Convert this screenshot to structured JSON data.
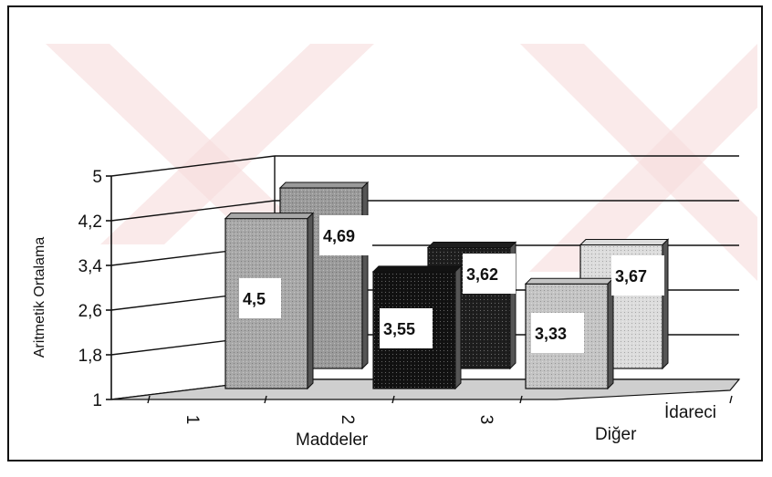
{
  "chart_data": {
    "type": "bar",
    "style": "3d-grouped",
    "categories": [
      "1",
      "2",
      "3"
    ],
    "series": [
      {
        "name": "İdareci",
        "values": [
          4.69,
          3.62,
          3.67
        ],
        "color": "#8e8e8e"
      },
      {
        "name": "Diğer",
        "values": [
          4.5,
          3.55,
          3.33
        ],
        "color": "#b0b0b0"
      }
    ],
    "series_colors_by_category": [
      [
        "#9a9a9a",
        "#a8a8a8"
      ],
      [
        "#1e1e1e",
        "#121212"
      ],
      [
        "#dcdcdc",
        "#c4c4c4"
      ]
    ],
    "data_labels": [
      "4,5",
      "4,69",
      "3,55",
      "3,62",
      "3,33",
      "3,67"
    ],
    "yticks": [
      "1",
      "1,8",
      "2,6",
      "3,4",
      "4,2",
      "5"
    ],
    "ytick_values": [
      1,
      1.8,
      2.6,
      3.4,
      4.2,
      5
    ],
    "ylim": [
      1,
      5
    ],
    "xlabel": "Maddeler",
    "ylabel": "Aritmetik Ortalama",
    "grid": true,
    "legend": "series labels on depth axis (bottom-right)"
  }
}
